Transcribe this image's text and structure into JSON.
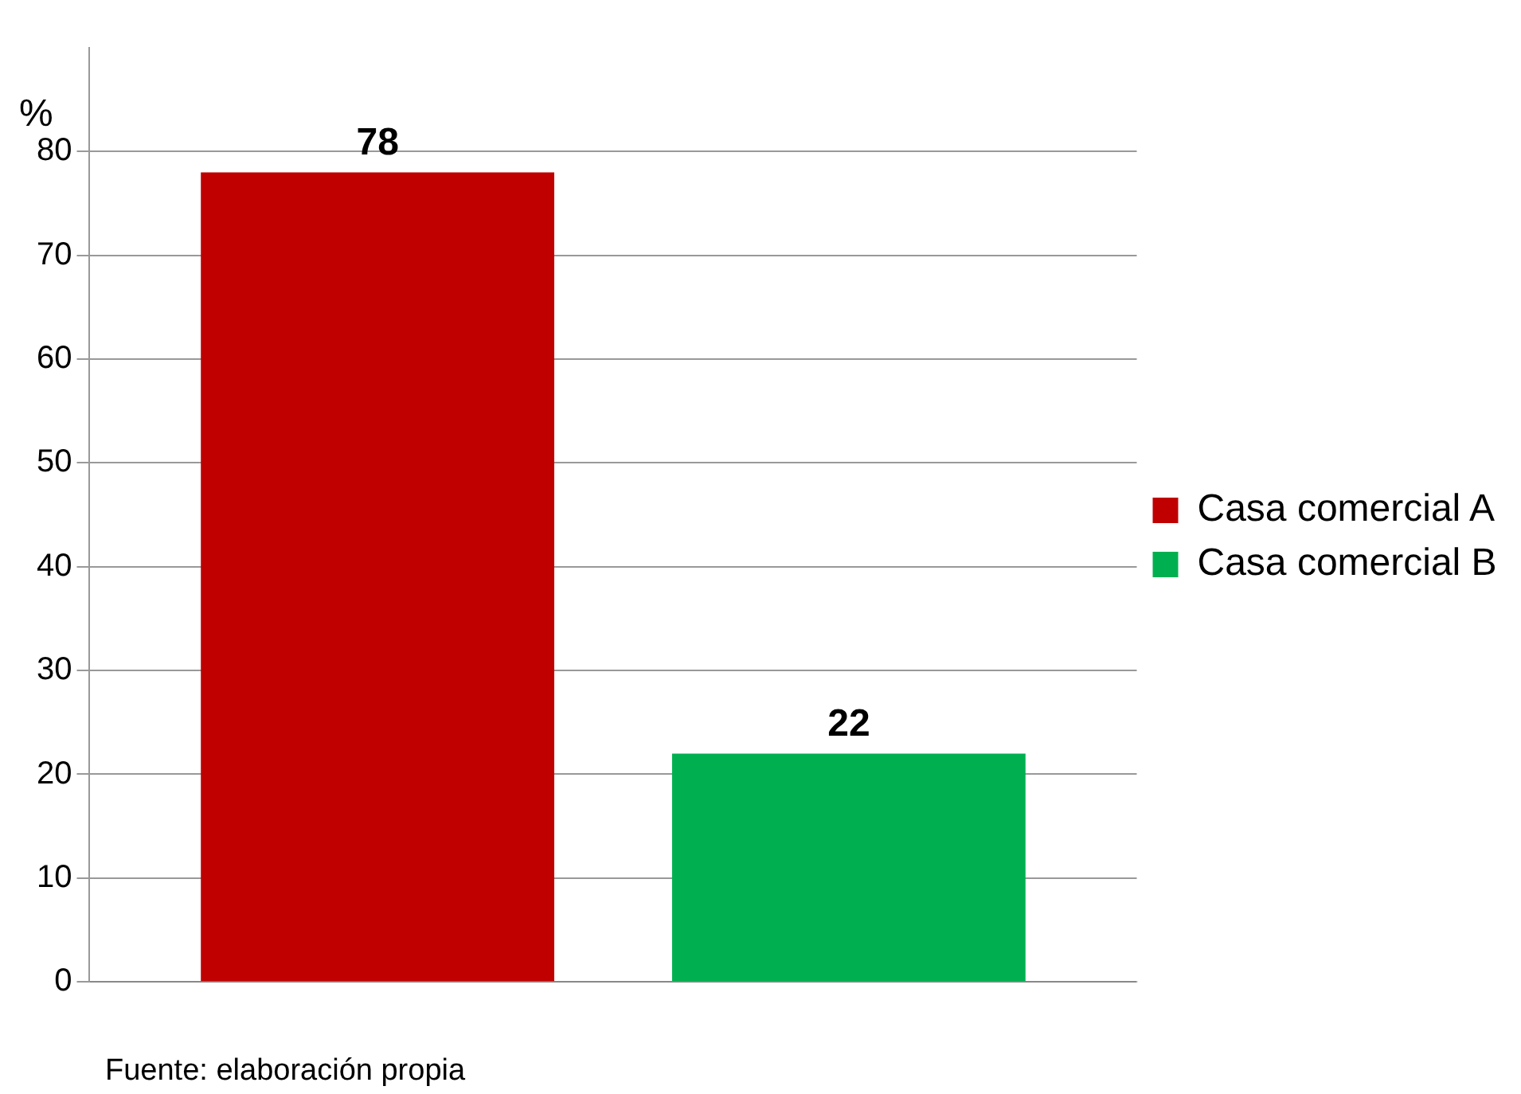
{
  "chart_data": {
    "type": "bar",
    "ylabel": "%",
    "categories": [
      null
    ],
    "series": [
      {
        "name": "Casa comercial A",
        "color": "#c00000",
        "values": [
          78
        ]
      },
      {
        "name": "Casa comercial B",
        "color": "#00b050",
        "values": [
          22
        ]
      }
    ],
    "ylim": [
      0,
      90
    ],
    "yticks": [
      0,
      10,
      20,
      30,
      40,
      50,
      60,
      70,
      80
    ],
    "grid": "y",
    "legend": "right",
    "data_labels": true,
    "annotations": [
      "Fuente: elaboración propia"
    ]
  }
}
